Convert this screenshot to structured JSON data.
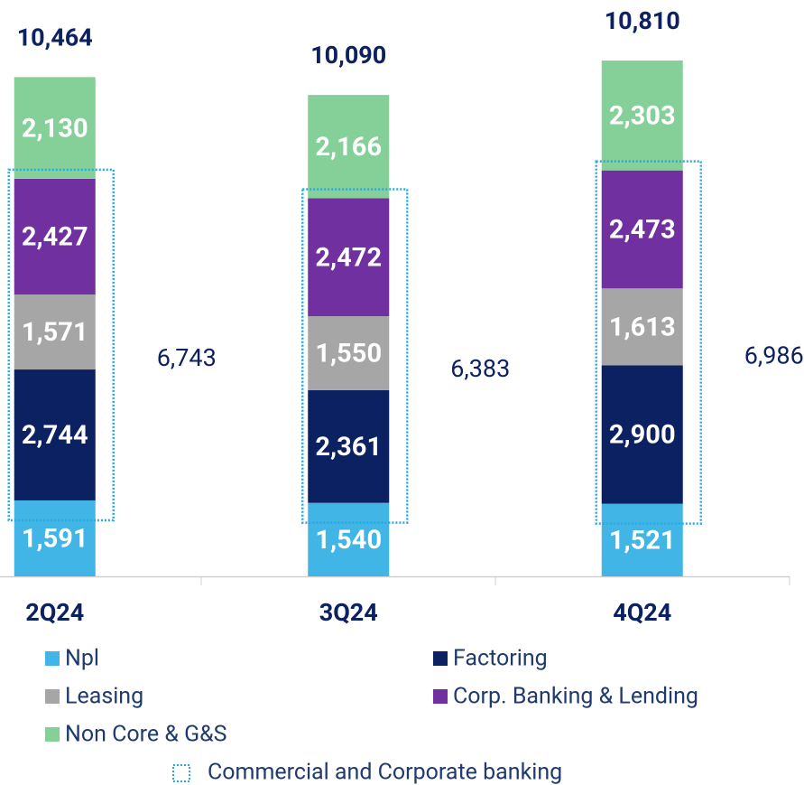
{
  "chart_data": {
    "type": "stacked-bar",
    "categories": [
      "2Q24",
      "3Q24",
      "4Q24"
    ],
    "series": [
      {
        "name": "Npl",
        "color": "#41b6e6",
        "values": [
          1591,
          1540,
          1521
        ],
        "value_labels": [
          "1,591",
          "1,540",
          "1,521"
        ]
      },
      {
        "name": "Factoring",
        "color": "#0c2161",
        "values": [
          2744,
          2361,
          2900
        ],
        "value_labels": [
          "2,744",
          "2,361",
          "2,900"
        ]
      },
      {
        "name": "Leasing",
        "color": "#a6a6a6",
        "values": [
          1571,
          1550,
          1613
        ],
        "value_labels": [
          "1,571",
          "1,550",
          "1,613"
        ]
      },
      {
        "name": "Corp. Banking & Lending",
        "color": "#7030a0",
        "values": [
          2427,
          2472,
          2473
        ],
        "value_labels": [
          "2,427",
          "2,472",
          "2,473"
        ]
      },
      {
        "name": "Non Core & G&S",
        "color": "#85cf99",
        "values": [
          2130,
          2166,
          2303
        ],
        "value_labels": [
          "2,130",
          "2,166",
          "2,303"
        ]
      }
    ],
    "totals": {
      "values": [
        10464,
        10090,
        10810
      ],
      "value_labels": [
        "10,464",
        "10,090",
        "10,810"
      ]
    },
    "commercial": {
      "name": "Commercial and Corporate banking",
      "color": "#29a8e0",
      "values": [
        6743,
        6383,
        6986
      ],
      "value_labels": [
        "6,743",
        "6,383",
        "6,986"
      ]
    },
    "ylim": [
      0,
      11000
    ]
  }
}
